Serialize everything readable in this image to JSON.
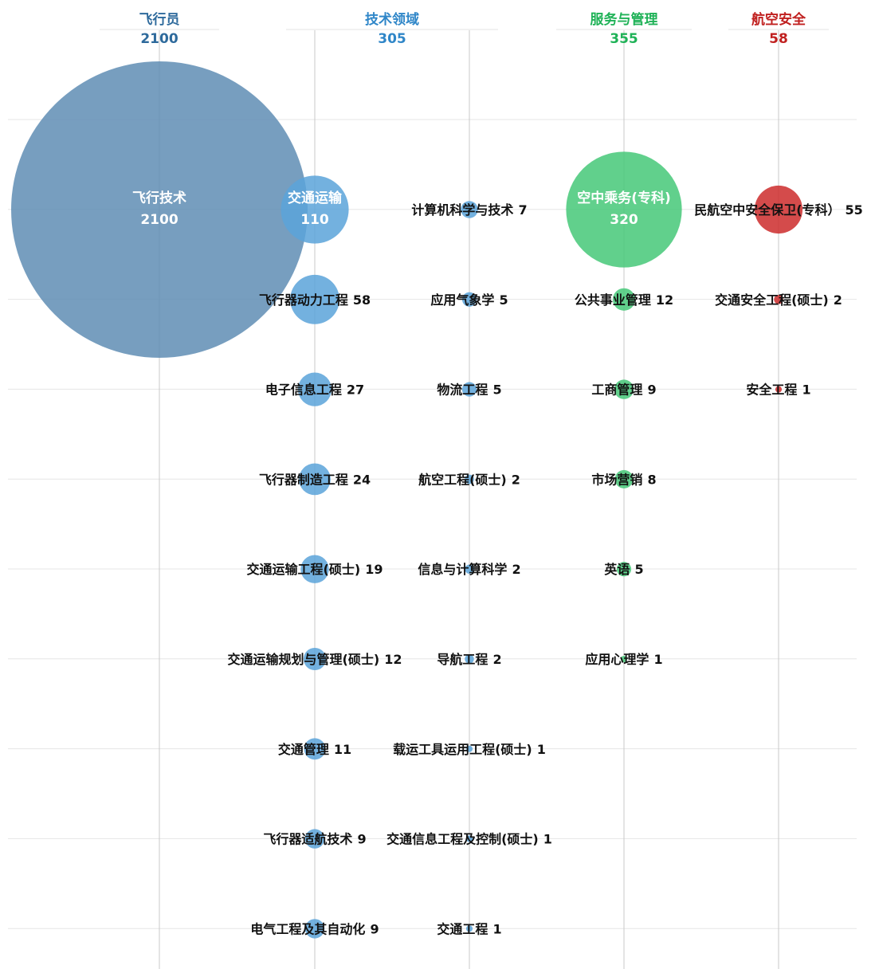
{
  "chart_data": {
    "type": "bubble",
    "title": "",
    "xlabel": "",
    "ylabel": "",
    "grid": true,
    "groups": [
      {
        "name": "飞行员",
        "total": "2100",
        "color": "#5f8db4",
        "label_color": "#2e6a9c"
      },
      {
        "name": "技术领域",
        "total": "305",
        "color": "#5aa3d9",
        "label_color": "#2f86c8"
      },
      {
        "name": "服务与管理",
        "total": "355",
        "color": "#45c878",
        "label_color": "#1fb257"
      },
      {
        "name": "航空安全",
        "total": "58",
        "color": "#cc2b2b",
        "label_color": "#c0201f"
      }
    ],
    "points": [
      {
        "name": "飞行技术",
        "value": 2100,
        "group": 0,
        "col": 0,
        "row": 0,
        "inside": true
      },
      {
        "name": "交通运输",
        "value": 110,
        "group": 1,
        "col": 1,
        "row": 0,
        "inside": true
      },
      {
        "name": "飞行器动力工程",
        "value": 58,
        "group": 1,
        "col": 1,
        "row": 1
      },
      {
        "name": "电子信息工程",
        "value": 27,
        "group": 1,
        "col": 1,
        "row": 2
      },
      {
        "name": "飞行器制造工程",
        "value": 24,
        "group": 1,
        "col": 1,
        "row": 3
      },
      {
        "name": "交通运输工程(硕士)",
        "value": 19,
        "group": 1,
        "col": 1,
        "row": 4
      },
      {
        "name": "交通运输规划与管理(硕士)",
        "value": 12,
        "group": 1,
        "col": 1,
        "row": 5
      },
      {
        "name": "交通管理",
        "value": 11,
        "group": 1,
        "col": 1,
        "row": 6
      },
      {
        "name": "飞行器适航技术",
        "value": 9,
        "group": 1,
        "col": 1,
        "row": 7
      },
      {
        "name": "电气工程及其自动化",
        "value": 9,
        "group": 1,
        "col": 1,
        "row": 8
      },
      {
        "name": "计算机科学与技术",
        "value": 7,
        "group": 1,
        "col": 2,
        "row": 0
      },
      {
        "name": "应用气象学",
        "value": 5,
        "group": 1,
        "col": 2,
        "row": 1
      },
      {
        "name": "物流工程",
        "value": 5,
        "group": 1,
        "col": 2,
        "row": 2
      },
      {
        "name": "航空工程(硕士)",
        "value": 2,
        "group": 1,
        "col": 2,
        "row": 3
      },
      {
        "name": "信息与计算科学",
        "value": 2,
        "group": 1,
        "col": 2,
        "row": 4
      },
      {
        "name": "导航工程",
        "value": 2,
        "group": 1,
        "col": 2,
        "row": 5
      },
      {
        "name": "载运工具运用工程(硕士)",
        "value": 1,
        "group": 1,
        "col": 2,
        "row": 6
      },
      {
        "name": "交通信息工程及控制(硕士)",
        "value": 1,
        "group": 1,
        "col": 2,
        "row": 7
      },
      {
        "name": "交通工程",
        "value": 1,
        "group": 1,
        "col": 2,
        "row": 8
      },
      {
        "name": "空中乘务(专科)",
        "value": 320,
        "group": 2,
        "col": 3,
        "row": 0,
        "inside": true
      },
      {
        "name": "公共事业管理",
        "value": 12,
        "group": 2,
        "col": 3,
        "row": 1
      },
      {
        "name": "工商管理",
        "value": 9,
        "group": 2,
        "col": 3,
        "row": 2
      },
      {
        "name": "市场营销",
        "value": 8,
        "group": 2,
        "col": 3,
        "row": 3
      },
      {
        "name": "英语",
        "value": 5,
        "group": 2,
        "col": 3,
        "row": 4
      },
      {
        "name": "应用心理学",
        "value": 1,
        "group": 2,
        "col": 3,
        "row": 5
      },
      {
        "name": "民航空中安全保卫(专科）",
        "value": 55,
        "group": 3,
        "col": 4,
        "row": 0
      },
      {
        "name": "交通安全工程(硕士)",
        "value": 2,
        "group": 3,
        "col": 4,
        "row": 1
      },
      {
        "name": "安全工程",
        "value": 1,
        "group": 3,
        "col": 4,
        "row": 2
      }
    ]
  }
}
